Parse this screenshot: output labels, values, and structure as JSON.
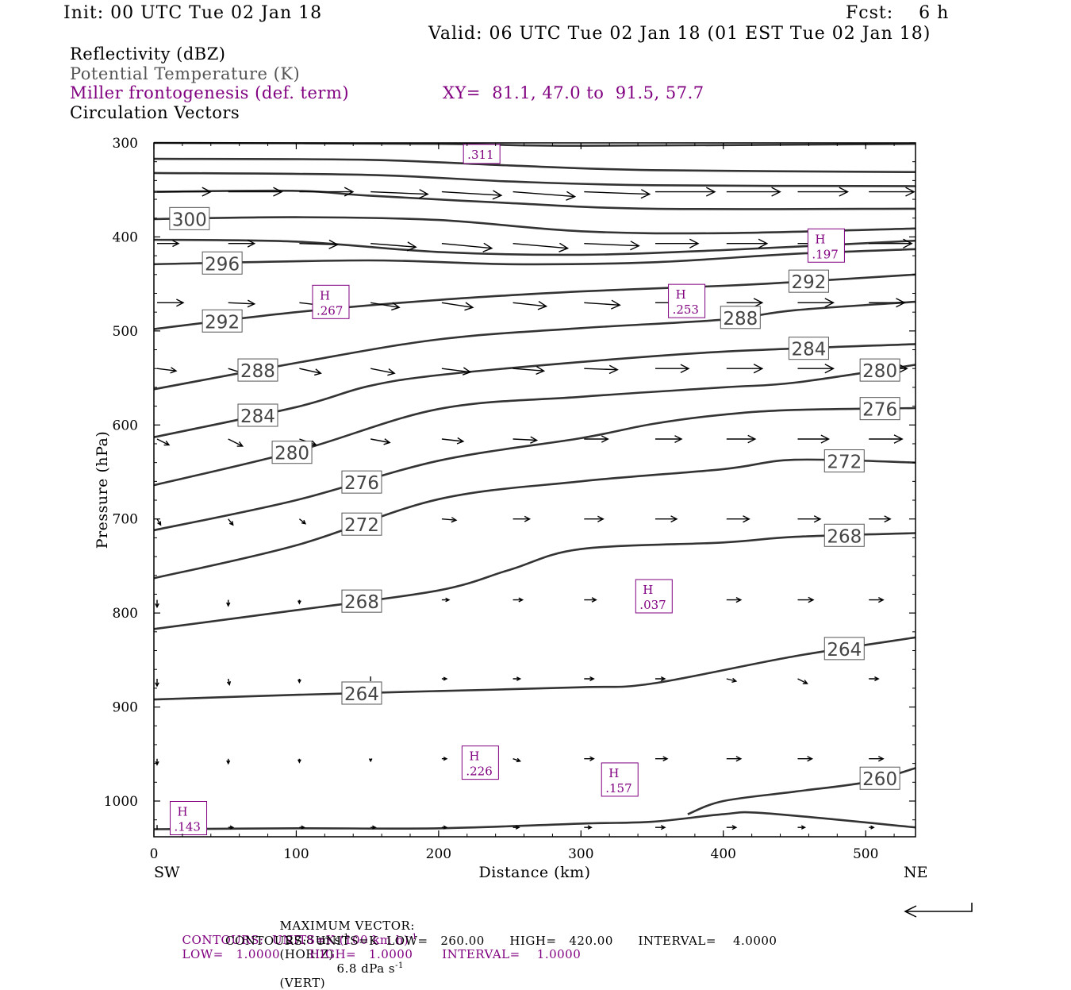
{
  "header": {
    "init": "Init: 00 UTC Tue 02 Jan 18",
    "fcst": "Fcst:    6 h",
    "valid": "Valid: 06 UTC Tue 02 Jan 18 (01 EST Tue 02 Jan 18)"
  },
  "legend": {
    "line1": "Reflectivity (dBZ)",
    "line2": "Potential Temperature (K)",
    "line3": "Miller frontogenesis (def. term)",
    "xy": "XY=  81.1, 47.0 to  91.5, 57.7",
    "line4": "Circulation Vectors"
  },
  "colors": {
    "black": "#000000",
    "gray": "#555555",
    "purple": "#800080",
    "contour": "#333333"
  },
  "footer": {
    "max_vector_label": "MAXIMUM VECTOR:",
    "max_vector_horiz": "27.8 m s",
    "horiz_suffix": "(HORIZ)",
    "max_vector_vert": "6.8 dPa s",
    "vert_suffix": "(VERT)",
    "contours1_a": "CONTOURS:  UNITS=K (100 km h)",
    "contours1_b": "LOW=   1.0000       HIGH=   1.0000       INTERVAL=    1.0000",
    "contours2": "CONTOURS:  UNITS=K  LOW=   260.00      HIGH=   420.00      INTERVAL=    4.0000",
    "sup_minus1": "-1"
  },
  "chart_data": {
    "type": "line",
    "xlabel": "Distance (km)",
    "ylabel": "Pressure (hPa)",
    "xlim": [
      0,
      535
    ],
    "ylim": [
      1038,
      300
    ],
    "x_ticks": [
      0,
      100,
      200,
      300,
      400,
      500
    ],
    "y_ticks": [
      300,
      400,
      500,
      600,
      700,
      800,
      900,
      1000
    ],
    "x_end_labels": {
      "left": "SW",
      "right": "NE"
    },
    "theta_contours": [
      {
        "points": [
          [
            0,
            300
          ],
          [
            200,
            301
          ],
          [
            300,
            303
          ],
          [
            535,
            301
          ]
        ]
      },
      {
        "points": [
          [
            0,
            317
          ],
          [
            150,
            318
          ],
          [
            250,
            324
          ],
          [
            350,
            329
          ],
          [
            535,
            331
          ]
        ]
      },
      {
        "points": [
          [
            0,
            332
          ],
          [
            150,
            334
          ],
          [
            250,
            341
          ],
          [
            350,
            345
          ],
          [
            535,
            346
          ]
        ]
      },
      {
        "points": [
          [
            0,
            352
          ],
          [
            100,
            351
          ],
          [
            150,
            356
          ],
          [
            250,
            364
          ],
          [
            350,
            370
          ],
          [
            535,
            370
          ]
        ],
        "label": null
      },
      {
        "points": [
          [
            0,
            381
          ],
          [
            100,
            379
          ],
          [
            200,
            382
          ],
          [
            300,
            394
          ],
          [
            400,
            396
          ],
          [
            535,
            391
          ]
        ],
        "label": "300",
        "label_x": 25
      },
      {
        "points": [
          [
            0,
            403
          ],
          [
            100,
            405
          ],
          [
            200,
            416
          ],
          [
            300,
            419
          ],
          [
            400,
            414
          ],
          [
            535,
            404
          ]
        ]
      },
      {
        "points": [
          [
            0,
            429
          ],
          [
            150,
            425
          ],
          [
            250,
            429
          ],
          [
            350,
            427
          ],
          [
            450,
            418
          ],
          [
            535,
            413
          ]
        ],
        "label": "296",
        "label_x": 48
      },
      {
        "points": [
          [
            0,
            498
          ],
          [
            100,
            480
          ],
          [
            200,
            467
          ],
          [
            300,
            458
          ],
          [
            400,
            452
          ],
          [
            450,
            448
          ],
          [
            535,
            440
          ]
        ],
        "label": "292",
        "label_x": 48,
        "label2": "292",
        "label2_x": 460
      },
      {
        "points": [
          [
            0,
            562
          ],
          [
            100,
            534
          ],
          [
            200,
            509
          ],
          [
            300,
            497
          ],
          [
            400,
            488
          ],
          [
            450,
            478
          ],
          [
            535,
            469
          ]
        ],
        "label": "288",
        "label_x": 73,
        "label2": "288",
        "label2_x": 412
      },
      {
        "points": [
          [
            0,
            613
          ],
          [
            100,
            581
          ],
          [
            150,
            559
          ],
          [
            200,
            547
          ],
          [
            300,
            533
          ],
          [
            400,
            522
          ],
          [
            535,
            514
          ]
        ],
        "label": "284",
        "label_x": 73,
        "label2": "284",
        "label2_x": 460
      },
      {
        "points": [
          [
            0,
            664
          ],
          [
            100,
            628
          ],
          [
            200,
            583
          ],
          [
            300,
            570
          ],
          [
            400,
            560
          ],
          [
            450,
            555
          ],
          [
            535,
            536
          ]
        ],
        "label": "280",
        "label_x": 97,
        "label2": "280",
        "label2_x": 510
      },
      {
        "points": [
          [
            0,
            712
          ],
          [
            100,
            680
          ],
          [
            200,
            638
          ],
          [
            300,
            614
          ],
          [
            350,
            599
          ],
          [
            400,
            589
          ],
          [
            450,
            584
          ],
          [
            535,
            582
          ]
        ],
        "label": "276",
        "label_x": 146,
        "label2": "276",
        "label2_x": 510
      },
      {
        "points": [
          [
            0,
            763
          ],
          [
            100,
            728
          ],
          [
            200,
            679
          ],
          [
            300,
            660
          ],
          [
            400,
            647
          ],
          [
            450,
            637
          ],
          [
            535,
            640
          ]
        ],
        "label": "272",
        "label_x": 146,
        "label2": "272",
        "label2_x": 485
      },
      {
        "points": [
          [
            0,
            817
          ],
          [
            100,
            797
          ],
          [
            200,
            776
          ],
          [
            250,
            754
          ],
          [
            300,
            732
          ],
          [
            400,
            725
          ],
          [
            450,
            719
          ],
          [
            535,
            715
          ]
        ],
        "label": "268",
        "label_x": 146,
        "label2": "268",
        "label2_x": 485
      },
      {
        "points": [
          [
            0,
            892
          ],
          [
            100,
            887
          ],
          [
            200,
            883
          ],
          [
            300,
            879
          ],
          [
            350,
            875
          ],
          [
            450,
            846
          ],
          [
            535,
            826
          ]
        ],
        "label": "264",
        "label_x": 146,
        "label2": "264",
        "label2_x": 485
      },
      {
        "points": [
          [
            375,
            1014
          ],
          [
            400,
            1000
          ],
          [
            450,
            990
          ],
          [
            500,
            980
          ],
          [
            535,
            965
          ]
        ],
        "label": "260",
        "label_x": 510
      },
      {
        "points": [
          [
            0,
            1030
          ],
          [
            100,
            1029
          ],
          [
            200,
            1029
          ],
          [
            300,
            1024
          ],
          [
            350,
            1022
          ],
          [
            400,
            1014
          ],
          [
            430,
            1013
          ],
          [
            535,
            1028
          ]
        ]
      }
    ],
    "frontogenesis_maxima": [
      {
        "x": 12,
        "p": 1019,
        "letter": "H",
        "value": ".143"
      },
      {
        "x": 112,
        "p": 470,
        "letter": "H",
        "value": ".267"
      },
      {
        "x": 217,
        "p": 960,
        "letter": "H",
        "value": ".226"
      },
      {
        "x": 315,
        "p": 978,
        "letter": "H",
        "value": ".157"
      },
      {
        "x": 339,
        "p": 783,
        "letter": "H",
        "value": ".037"
      },
      {
        "x": 362,
        "p": 469,
        "letter": "H",
        "value": ".253"
      },
      {
        "x": 460,
        "p": 410,
        "letter": "H",
        "value": ".197"
      },
      {
        "x": 218,
        "p": 305,
        "letter": "",
        "value": ".311"
      }
    ],
    "vector_grid": {
      "x": [
        0,
        50,
        100,
        150,
        200,
        250,
        300,
        350,
        400,
        450,
        500
      ],
      "levels": [
        {
          "p": 352,
          "u": [
            45,
            45,
            45,
            48,
            50,
            52,
            55,
            50,
            45,
            42,
            38
          ],
          "w": [
            0,
            0,
            0,
            2,
            3,
            4,
            2,
            0,
            0,
            0,
            0
          ]
        },
        {
          "p": 407,
          "u": [
            18,
            22,
            32,
            38,
            42,
            46,
            46,
            36,
            34,
            34,
            36
          ],
          "w": [
            0,
            0,
            1,
            3,
            4,
            4,
            2,
            0,
            0,
            0,
            0
          ]
        },
        {
          "p": 470,
          "u": [
            22,
            22,
            26,
            24,
            26,
            28,
            30,
            28,
            30,
            30,
            30
          ],
          "w": [
            0,
            1,
            3,
            4,
            4,
            3,
            2,
            0,
            0,
            0,
            0
          ]
        },
        {
          "p": 540,
          "u": [
            16,
            16,
            18,
            20,
            24,
            26,
            28,
            28,
            30,
            30,
            32
          ],
          "w": [
            2,
            5,
            4,
            4,
            3,
            2,
            1,
            0,
            0,
            0,
            0
          ]
        },
        {
          "p": 615,
          "u": [
            10,
            12,
            14,
            16,
            18,
            20,
            20,
            22,
            24,
            26,
            28
          ],
          "w": [
            5,
            6,
            5,
            3,
            2,
            1,
            0,
            0,
            0,
            0,
            0
          ]
        },
        {
          "p": 700,
          "u": [
            3,
            4,
            5,
            8,
            12,
            14,
            16,
            18,
            19,
            19,
            18
          ],
          "w": [
            5,
            5,
            4,
            2,
            1,
            0,
            0,
            0,
            0,
            0,
            0
          ]
        },
        {
          "p": 786,
          "u": [
            0,
            0,
            0,
            1,
            6,
            8,
            10,
            12,
            12,
            13,
            12
          ],
          "w": [
            6,
            5,
            3,
            0,
            0,
            0,
            0,
            0,
            0,
            0,
            0
          ]
        },
        {
          "p": 870,
          "u": [
            0,
            1,
            0,
            0,
            4,
            6,
            8,
            8,
            8,
            8,
            8
          ],
          "w": [
            6,
            5,
            3,
            0,
            0,
            0,
            0,
            0,
            2,
            4,
            0
          ]
        },
        {
          "p": 955,
          "u": [
            0,
            0,
            0,
            0,
            4,
            6,
            8,
            10,
            12,
            12,
            12
          ],
          "w": [
            5,
            4,
            3,
            2,
            0,
            2,
            0,
            0,
            0,
            0,
            0
          ]
        },
        {
          "p": 1028,
          "u": [
            0,
            4,
            4,
            4,
            4,
            5,
            6,
            8,
            8,
            6,
            4
          ],
          "w": [
            0,
            0,
            0,
            0,
            0,
            0,
            0,
            0,
            0,
            0,
            0
          ]
        }
      ]
    }
  }
}
